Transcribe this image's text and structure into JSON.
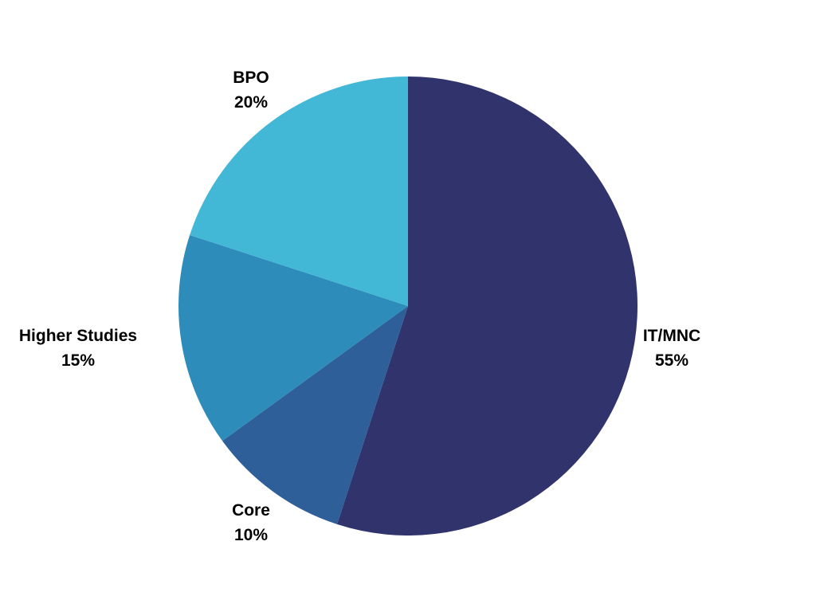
{
  "chart_data": {
    "type": "pie",
    "categories": [
      "IT/MNC",
      "Core",
      "Higher Studies",
      "BPO"
    ],
    "values": [
      55,
      10,
      15,
      20
    ],
    "value_labels": [
      "55%",
      "10%",
      "15%",
      "20%"
    ],
    "colors": [
      "#31346c",
      "#2e5f99",
      "#2d8cba",
      "#42b8d6"
    ],
    "start": "12 o'clock",
    "direction": "clockwise",
    "legend": "none"
  }
}
